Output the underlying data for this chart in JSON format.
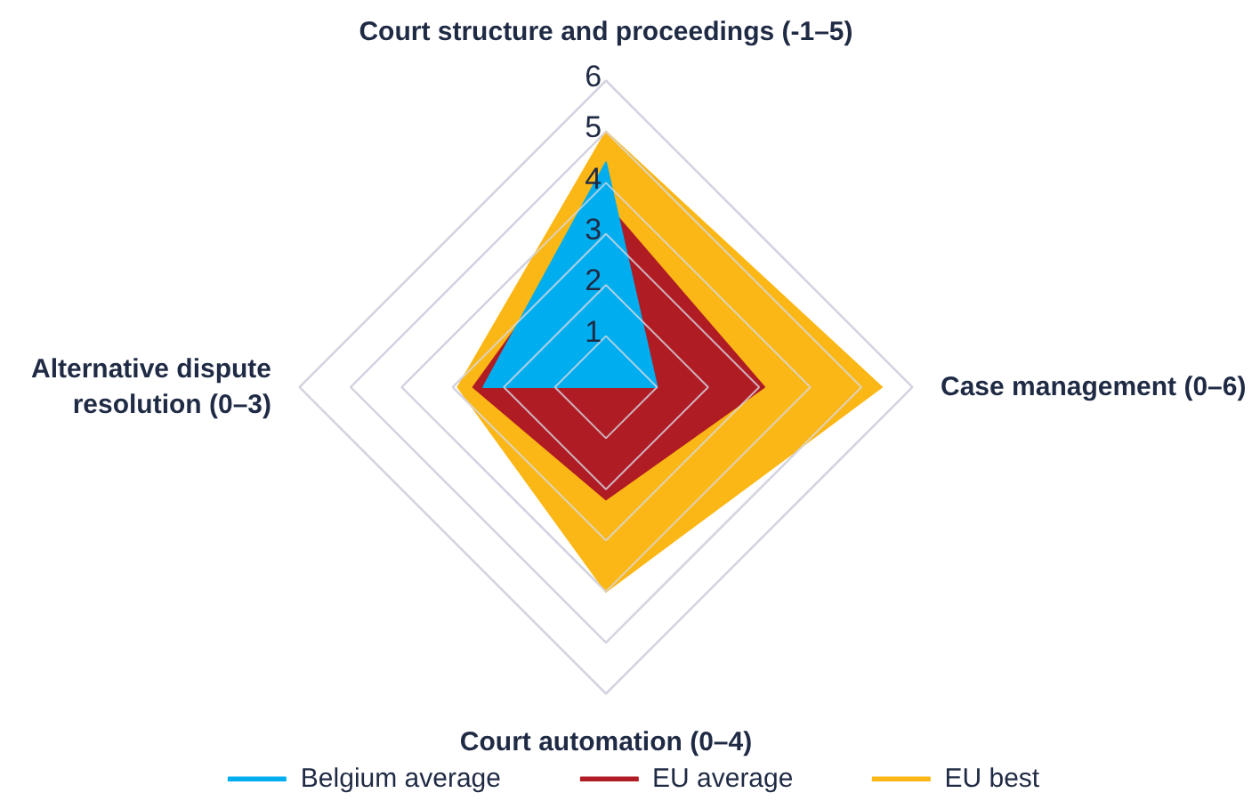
{
  "chart_data": {
    "type": "radar",
    "categories": [
      "Court structure and proceedings (-1–5)",
      "Case management (0–6)",
      "Court automation (0–4)",
      "Alternative dispute resolution (0–3)"
    ],
    "ylim": [
      0,
      6
    ],
    "yticks": [
      1,
      2,
      3,
      4,
      5,
      6
    ],
    "grid": true,
    "legend": "bottom",
    "series": [
      {
        "name": "Belgium average",
        "color": "#00aeef",
        "values": [
          4.4,
          1.0,
          0,
          2.4
        ]
      },
      {
        "name": "EU average",
        "color": "#b01c24",
        "values": [
          3.6,
          3.1,
          2.2,
          2.6
        ]
      },
      {
        "name": "EU best",
        "color": "#fbb716",
        "values": [
          5,
          5.4,
          4.0,
          2.9
        ]
      }
    ]
  }
}
